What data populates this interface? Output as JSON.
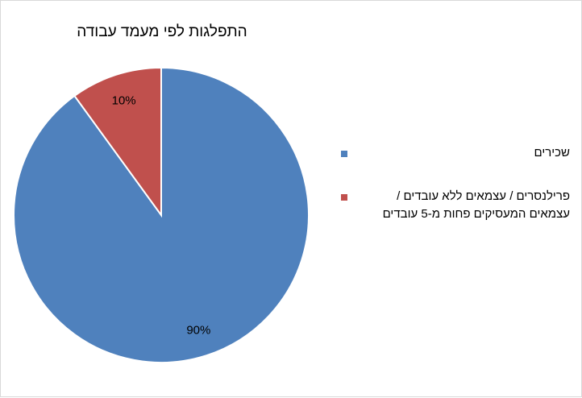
{
  "chart_data": {
    "type": "pie",
    "title": "התפלגות לפי מעמד עבודה",
    "categories": [
      "שכירים",
      "פרילנסרים / עצמאים ללא עובדים / עצמאים המעסיקים פחות מ-5 עובדים"
    ],
    "values": [
      90,
      10
    ],
    "data_labels": [
      "90%",
      "10%"
    ],
    "colors": [
      "#4f81bd",
      "#c0504d"
    ],
    "legend_position": "right"
  }
}
